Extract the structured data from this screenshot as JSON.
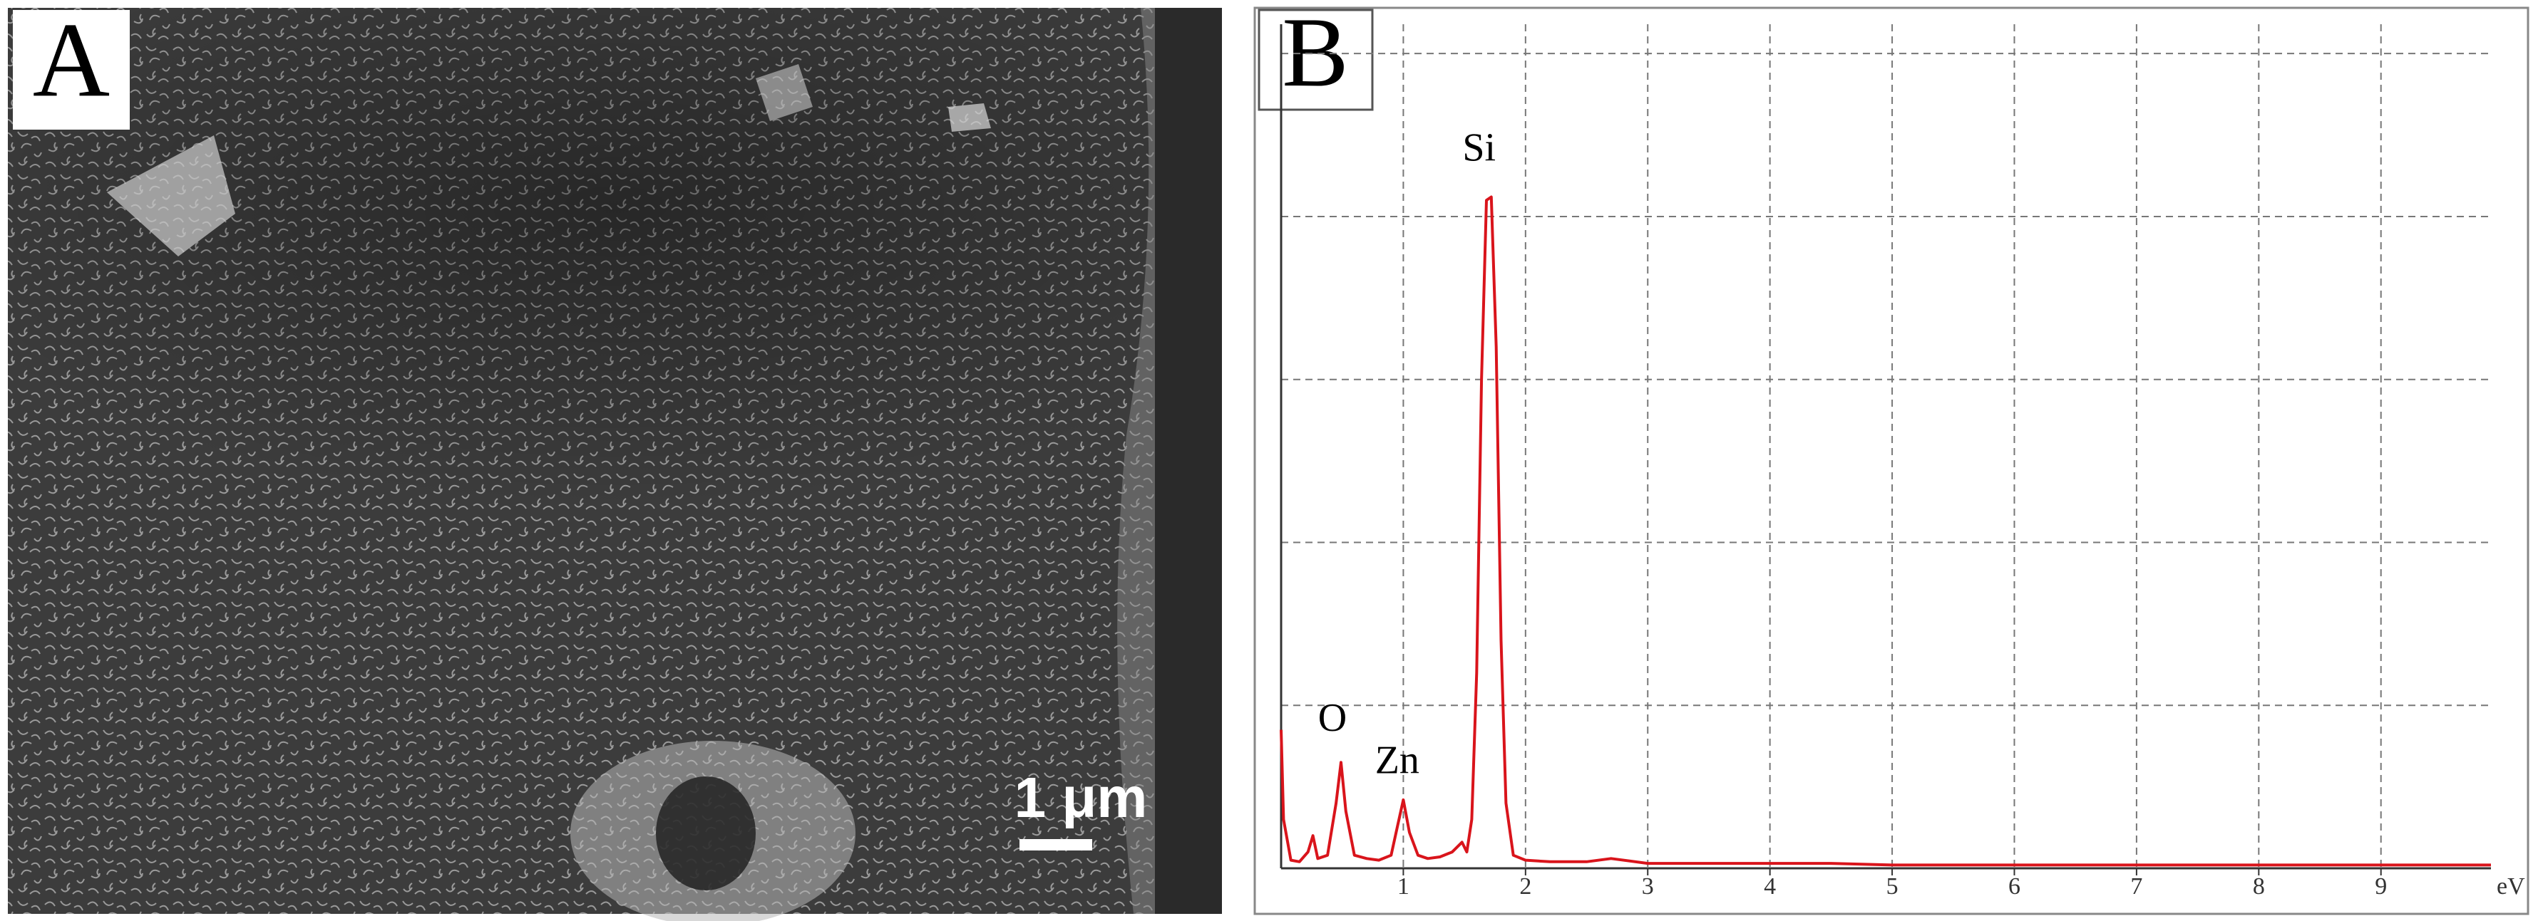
{
  "panel_a": {
    "label": "A",
    "scale_bar": "1 μm"
  },
  "chart_data": {
    "type": "line",
    "label": "B",
    "x_unit": "eV",
    "xlim": [
      0,
      9.9
    ],
    "xticks": [
      1,
      2,
      3,
      4,
      5,
      6,
      7,
      8,
      9
    ],
    "ylim": [
      0,
      5.18
    ],
    "yticks": [
      1,
      2,
      3,
      4,
      5
    ],
    "grid": true,
    "annotations": [
      "Si",
      "O",
      "Zn"
    ],
    "series": [
      {
        "color": "#d9141b",
        "x": [
          0,
          0.02,
          0.08,
          0.15,
          0.22,
          0.26,
          0.3,
          0.38,
          0.45,
          0.49,
          0.53,
          0.6,
          0.7,
          0.8,
          0.9,
          0.95,
          1.0,
          1.05,
          1.12,
          1.2,
          1.3,
          1.4,
          1.48,
          1.52,
          1.56,
          1.6,
          1.64,
          1.68,
          1.72,
          1.76,
          1.8,
          1.84,
          1.9,
          2.0,
          2.2,
          2.5,
          2.7,
          3.0,
          3.5,
          4,
          4.5,
          5,
          5.5,
          6,
          6.5,
          7,
          7.5,
          8,
          8.5,
          9,
          9.5,
          9.9
        ],
        "values": [
          0.85,
          0.3,
          0.05,
          0.04,
          0.1,
          0.2,
          0.06,
          0.08,
          0.4,
          0.65,
          0.35,
          0.08,
          0.06,
          0.05,
          0.08,
          0.25,
          0.42,
          0.22,
          0.08,
          0.06,
          0.07,
          0.1,
          0.16,
          0.1,
          0.3,
          1.2,
          3.0,
          4.1,
          4.12,
          3.2,
          1.4,
          0.4,
          0.08,
          0.05,
          0.04,
          0.04,
          0.06,
          0.03,
          0.03,
          0.03,
          0.03,
          0.02,
          0.02,
          0.02,
          0.02,
          0.02,
          0.02,
          0.02,
          0.02,
          0.02,
          0.02,
          0.02
        ]
      }
    ]
  }
}
